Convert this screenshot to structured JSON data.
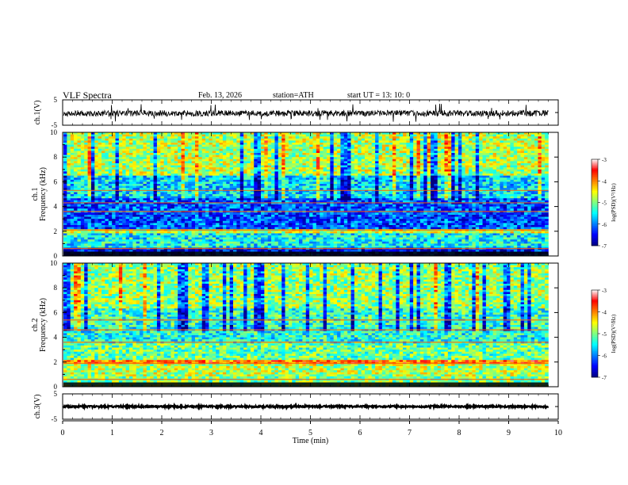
{
  "header": {
    "title": "VLF  Spectra",
    "date": "Feb. 13, 2026",
    "station": "station=ATH",
    "start": "start  UT  =   13: 10: 0"
  },
  "colors": {
    "spectrum": [
      "#00007f",
      "#0000ff",
      "#0080ff",
      "#00ffff",
      "#7fff7f",
      "#ffff00",
      "#ff8000",
      "#ff0000",
      "#ffffff"
    ]
  },
  "chart_data": [
    {
      "type": "line",
      "name": "ch1-waveform",
      "ylabel": "ch.1(V)",
      "ylim": [
        -5,
        5
      ],
      "y_ticks": [
        "5",
        "-5"
      ],
      "xlim": [
        0,
        10
      ],
      "data_extent_min": 9.8,
      "baseline": -0.3,
      "noise_amplitude": 1.2,
      "spike_amplitude": 3.8
    },
    {
      "type": "heatmap",
      "name": "ch1-spectrogram",
      "label_channel": "ch.1",
      "ylabel": "Frequency  (kHz)",
      "ylim": [
        0,
        10
      ],
      "y_ticks": [
        "0",
        "2",
        "4",
        "6",
        "8",
        "10"
      ],
      "xlim": [
        0,
        10
      ],
      "data_extent_min": 9.8,
      "colorbar": {
        "label": "log(PSD)(V²/Hz)",
        "range": [
          -7,
          -3
        ],
        "ticks": [
          "-3",
          "-4",
          "-5",
          "-6",
          "-7"
        ]
      },
      "intensity_bands": [
        {
          "f": [
            0,
            0.6
          ],
          "level": -6.5
        },
        {
          "f": [
            0.6,
            1.9
          ],
          "level": -5.5
        },
        {
          "f": [
            1.9,
            2.2
          ],
          "level": -4.7
        },
        {
          "f": [
            2.2,
            4.7
          ],
          "level": -6.2
        },
        {
          "f": [
            4.7,
            6.5
          ],
          "level": -5.6
        },
        {
          "f": [
            6.5,
            10
          ],
          "level": -4.8
        }
      ],
      "tonal_lines_khz": [
        0.6,
        2.1,
        3.6,
        4.3,
        5.3
      ]
    },
    {
      "type": "heatmap",
      "name": "ch2-spectrogram",
      "label_channel": "ch.2",
      "ylabel": "Frequency  (kHz)",
      "ylim": [
        0,
        10
      ],
      "y_ticks": [
        "0",
        "2",
        "4",
        "6",
        "8",
        "10"
      ],
      "xlim": [
        0,
        10
      ],
      "data_extent_min": 9.8,
      "colorbar": {
        "label": "log(PSD)(V²/Hz)",
        "range": [
          -7,
          -3
        ],
        "ticks": [
          "-3",
          "-4",
          "-5",
          "-6",
          "-7"
        ]
      },
      "intensity_bands": [
        {
          "f": [
            0,
            0.8
          ],
          "level": -5.0
        },
        {
          "f": [
            0.8,
            1.8
          ],
          "level": -4.8
        },
        {
          "f": [
            1.8,
            2.1
          ],
          "level": -3.9
        },
        {
          "f": [
            2.1,
            3.5
          ],
          "level": -5.1
        },
        {
          "f": [
            3.5,
            5.0
          ],
          "level": -5.4
        },
        {
          "f": [
            5.0,
            6.3
          ],
          "level": -5.3
        },
        {
          "f": [
            6.3,
            10
          ],
          "level": -4.9
        }
      ],
      "tonal_lines_khz": [
        0.6,
        1.9,
        3.6,
        4.6,
        5.4
      ]
    },
    {
      "type": "line",
      "name": "ch3-waveform",
      "ylabel": "ch.3(V)",
      "xlabel": "Time  (min)",
      "ylim": [
        -5,
        5
      ],
      "y_ticks": [
        "5",
        "-5"
      ],
      "xlim": [
        0,
        10
      ],
      "x_ticks": [
        "0",
        "1",
        "2",
        "3",
        "4",
        "5",
        "6",
        "7",
        "8",
        "9",
        "10"
      ],
      "data_extent_min": 9.8,
      "baseline": 0.0,
      "noise_amplitude": 0.35
    }
  ]
}
